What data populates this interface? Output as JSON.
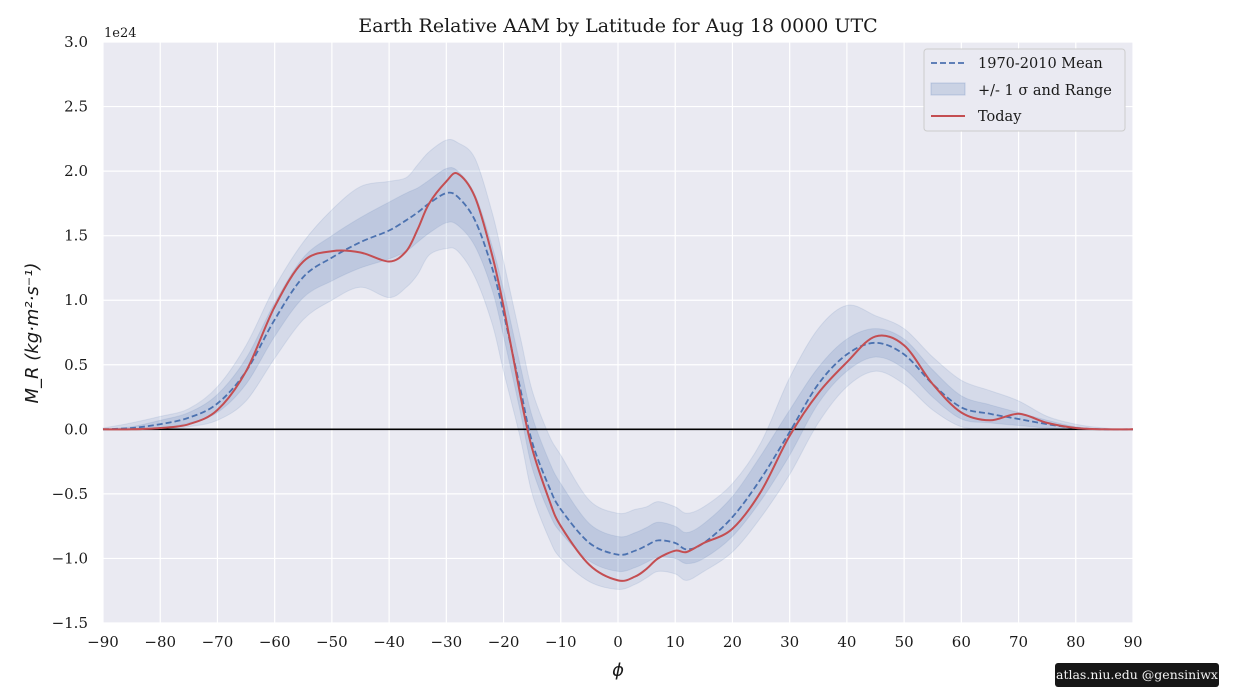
{
  "chart_data": {
    "type": "area",
    "title": "Earth Relative AAM by Latitude for Aug 18 0000 UTC",
    "xlabel": "ϕ",
    "ylabel": "M_R (kg·m²·s⁻¹)",
    "y_offset_label": "1e24",
    "xlim": [
      -90,
      90
    ],
    "ylim": [
      -1.5,
      3.0
    ],
    "x_ticks": [
      -90,
      -80,
      -70,
      -60,
      -50,
      -40,
      -30,
      -20,
      -10,
      0,
      10,
      20,
      30,
      40,
      50,
      60,
      70,
      80,
      90
    ],
    "x_tick_labels": [
      "−90",
      "−80",
      "−70",
      "−60",
      "−50",
      "−40",
      "−30",
      "−20",
      "−10",
      "0",
      "10",
      "20",
      "30",
      "40",
      "50",
      "60",
      "70",
      "80",
      "90"
    ],
    "y_ticks": [
      -1.5,
      -1.0,
      -0.5,
      0.0,
      0.5,
      1.0,
      1.5,
      2.0,
      2.5,
      3.0
    ],
    "y_tick_labels": [
      "−1.5",
      "−1.0",
      "−0.5",
      "0.0",
      "0.5",
      "1.0",
      "1.5",
      "2.0",
      "2.5",
      "3.0"
    ],
    "grid": true,
    "legend_position": "top-right",
    "legend": [
      "1970-2010 Mean",
      "+/- 1 σ and Range",
      "Today"
    ],
    "colors": {
      "mean": "#4c72b0",
      "band": "#4c72b0",
      "today": "#c44e52",
      "zero_line": "#000000",
      "plot_bg": "#eaeaf2",
      "grid": "#ffffff"
    },
    "x": [
      -90,
      -85,
      -80,
      -75,
      -70,
      -65,
      -60,
      -55,
      -50,
      -45,
      -40,
      -37,
      -35,
      -33,
      -30,
      -28,
      -25,
      -22,
      -20,
      -17,
      -15,
      -12,
      -10,
      -5,
      0,
      3,
      5,
      7,
      10,
      12,
      15,
      20,
      25,
      30,
      35,
      40,
      45,
      50,
      55,
      60,
      65,
      70,
      75,
      80,
      85,
      90
    ],
    "series": [
      {
        "name": "1970-2010 Mean",
        "values": [
          0.0,
          0.01,
          0.04,
          0.09,
          0.2,
          0.45,
          0.85,
          1.18,
          1.33,
          1.45,
          1.54,
          1.62,
          1.68,
          1.75,
          1.83,
          1.8,
          1.62,
          1.25,
          0.9,
          0.3,
          -0.1,
          -0.45,
          -0.62,
          -0.88,
          -0.97,
          -0.94,
          -0.9,
          -0.86,
          -0.88,
          -0.93,
          -0.88,
          -0.68,
          -0.38,
          -0.02,
          0.35,
          0.58,
          0.67,
          0.58,
          0.35,
          0.17,
          0.12,
          0.08,
          0.04,
          0.01,
          0.0,
          0.0
        ]
      },
      {
        "name": "Today",
        "values": [
          0.0,
          0.0,
          0.01,
          0.04,
          0.15,
          0.45,
          0.95,
          1.3,
          1.38,
          1.37,
          1.3,
          1.38,
          1.55,
          1.75,
          1.92,
          1.98,
          1.8,
          1.35,
          0.95,
          0.25,
          -0.15,
          -0.55,
          -0.75,
          -1.05,
          -1.17,
          -1.14,
          -1.08,
          -1.0,
          -0.94,
          -0.95,
          -0.88,
          -0.77,
          -0.48,
          -0.05,
          0.28,
          0.52,
          0.72,
          0.65,
          0.35,
          0.13,
          0.07,
          0.12,
          0.05,
          0.01,
          0.0,
          0.0
        ]
      }
    ],
    "std_band": {
      "lower": [
        0.0,
        0.0,
        0.01,
        0.05,
        0.13,
        0.35,
        0.72,
        1.02,
        1.15,
        1.25,
        1.32,
        1.38,
        1.45,
        1.52,
        1.6,
        1.58,
        1.42,
        1.08,
        0.72,
        0.12,
        -0.3,
        -0.65,
        -0.8,
        -1.02,
        -1.1,
        -1.07,
        -1.03,
        -0.99,
        -1.0,
        -1.04,
        -1.0,
        -0.83,
        -0.55,
        -0.2,
        0.2,
        0.45,
        0.56,
        0.47,
        0.25,
        0.08,
        0.05,
        0.03,
        0.01,
        0.0,
        0.0,
        0.0
      ],
      "upper": [
        0.0,
        0.02,
        0.07,
        0.13,
        0.27,
        0.55,
        0.98,
        1.33,
        1.5,
        1.64,
        1.76,
        1.83,
        1.87,
        1.93,
        2.02,
        2.0,
        1.82,
        1.42,
        1.08,
        0.48,
        0.1,
        -0.25,
        -0.42,
        -0.73,
        -0.83,
        -0.8,
        -0.76,
        -0.72,
        -0.75,
        -0.8,
        -0.73,
        -0.52,
        -0.2,
        0.15,
        0.48,
        0.7,
        0.78,
        0.7,
        0.46,
        0.26,
        0.19,
        0.13,
        0.07,
        0.02,
        0.0,
        0.0
      ]
    },
    "range_band": {
      "lower": [
        0.0,
        0.0,
        0.0,
        0.02,
        0.07,
        0.22,
        0.55,
        0.85,
        1.0,
        1.1,
        1.02,
        1.1,
        1.2,
        1.35,
        1.4,
        1.38,
        1.18,
        0.82,
        0.45,
        -0.08,
        -0.5,
        -0.85,
        -1.0,
        -1.18,
        -1.24,
        -1.2,
        -1.15,
        -1.1,
        -1.12,
        -1.17,
        -1.1,
        -0.95,
        -0.68,
        -0.35,
        0.05,
        0.33,
        0.45,
        0.35,
        0.15,
        0.02,
        0.0,
        0.0,
        0.0,
        0.0,
        0.0,
        0.0
      ],
      "upper": [
        0.01,
        0.05,
        0.1,
        0.16,
        0.33,
        0.65,
        1.1,
        1.45,
        1.7,
        1.88,
        1.92,
        1.95,
        2.05,
        2.15,
        2.24,
        2.22,
        2.1,
        1.68,
        1.3,
        0.7,
        0.3,
        -0.05,
        -0.2,
        -0.55,
        -0.65,
        -0.62,
        -0.6,
        -0.56,
        -0.6,
        -0.65,
        -0.6,
        -0.42,
        -0.1,
        0.4,
        0.78,
        0.96,
        0.88,
        0.78,
        0.56,
        0.38,
        0.3,
        0.22,
        0.1,
        0.04,
        0.01,
        0.0
      ]
    }
  },
  "credit": "atlas.niu.edu  @gensiniwx"
}
